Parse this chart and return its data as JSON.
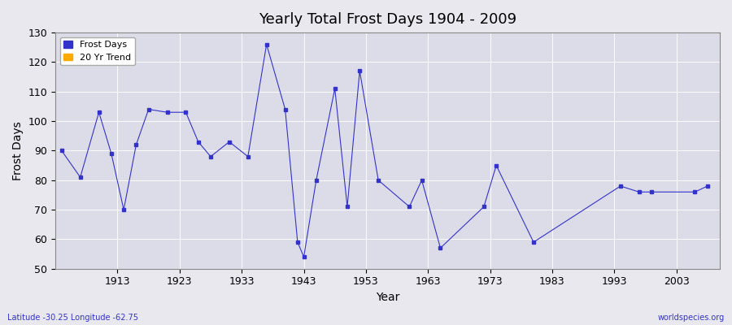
{
  "title": "Yearly Total Frost Days 1904 - 2009",
  "xlabel": "Year",
  "ylabel": "Frost Days",
  "footnote_left": "Latitude -30.25 Longitude -62.75",
  "footnote_right": "worldspecies.org",
  "ylim": [
    50,
    130
  ],
  "yticks": [
    50,
    60,
    70,
    80,
    90,
    100,
    110,
    120,
    130
  ],
  "xticks": [
    1913,
    1923,
    1933,
    1943,
    1953,
    1963,
    1973,
    1983,
    1993,
    2003
  ],
  "background_color": "#e8e8ee",
  "plot_bg_color": "#dcdce8",
  "line_color": "#3333cc",
  "marker_color": "#3333cc",
  "trend_color": "#ffaa00",
  "years": [
    1904,
    1907,
    1910,
    1912,
    1914,
    1916,
    1918,
    1921,
    1924,
    1926,
    1928,
    1931,
    1934,
    1937,
    1940,
    1942,
    1943,
    1945,
    1948,
    1950,
    1952,
    1955,
    1960,
    1962,
    1965,
    1972,
    1974,
    1980,
    1994,
    1997,
    1999,
    2006,
    2008
  ],
  "frost_days": [
    90,
    81,
    103,
    89,
    70,
    92,
    104,
    103,
    103,
    93,
    88,
    93,
    88,
    126,
    104,
    59,
    54,
    80,
    111,
    71,
    117,
    80,
    71,
    80,
    57,
    71,
    85,
    59,
    78,
    76,
    76,
    76,
    78
  ]
}
